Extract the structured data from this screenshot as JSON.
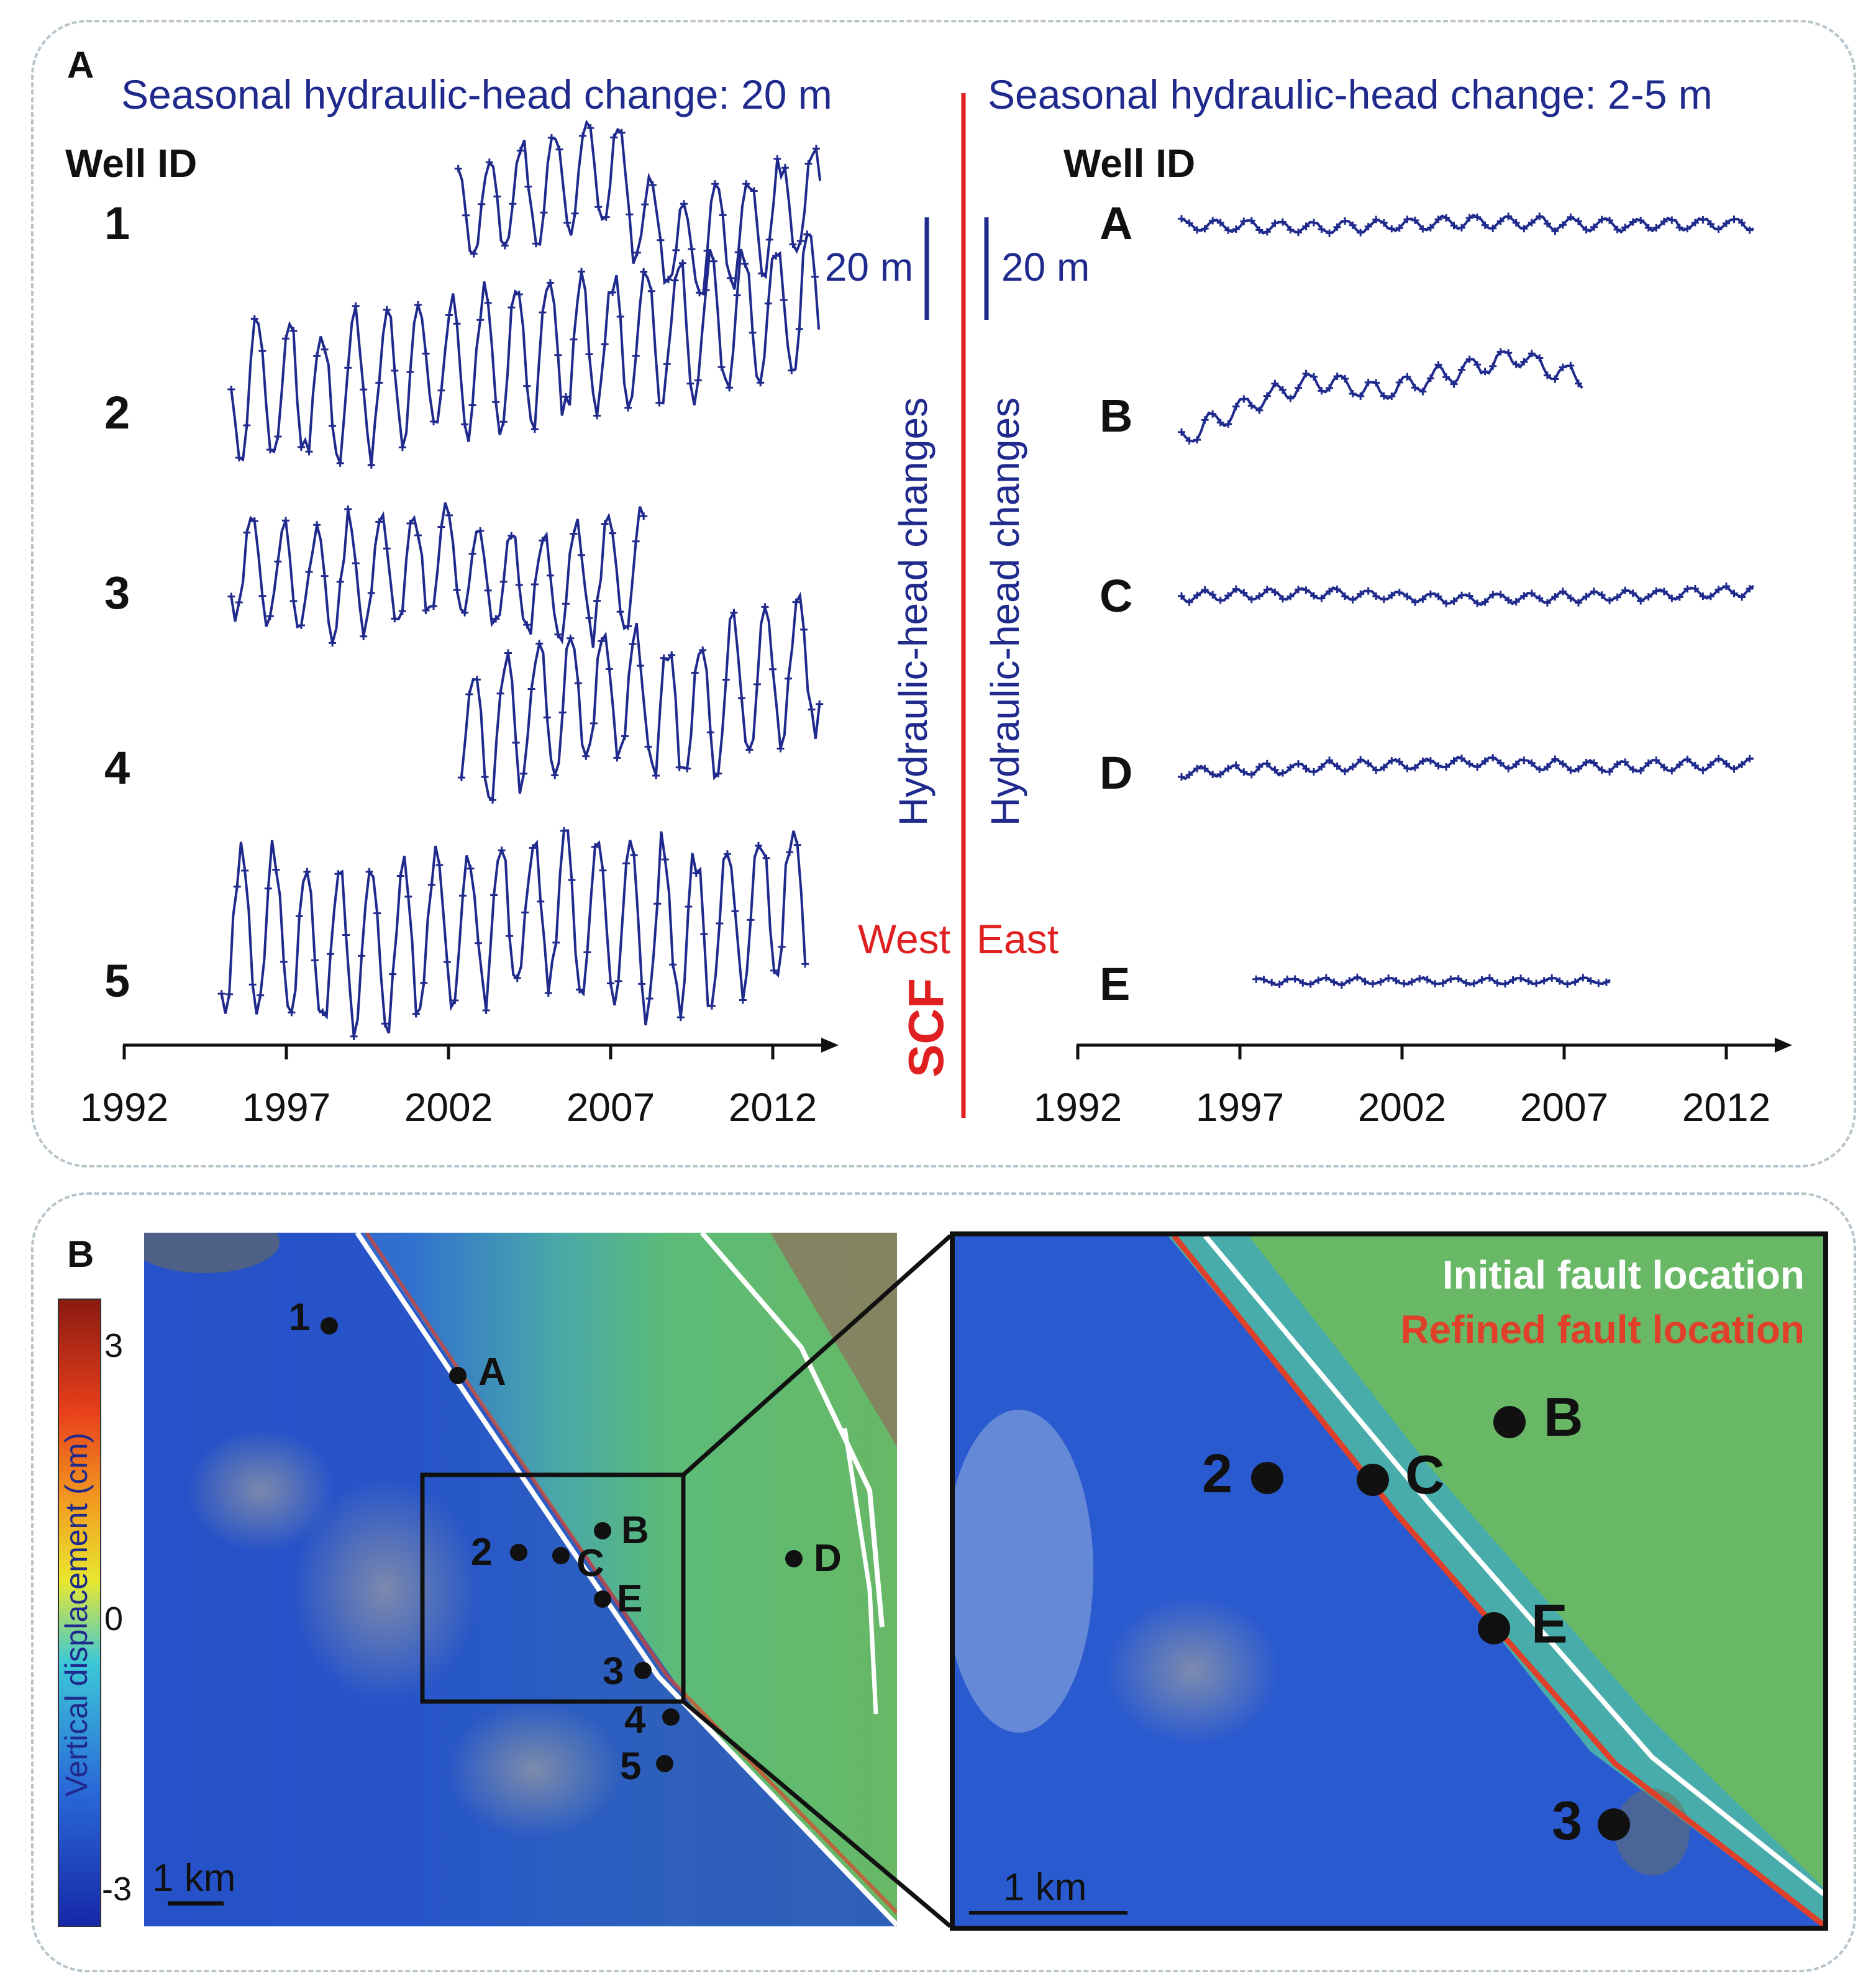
{
  "panel_a": {
    "letter": "A",
    "west_title": "Seasonal hydraulic-head change: 20 m",
    "east_title": "Seasonal hydraulic-head change: 2-5 m",
    "well_id_label": "Well ID",
    "scale_label": "20 m",
    "ylabel": "Hydraulic-head changes",
    "fault": {
      "name": "SCF",
      "west": "West",
      "east": "East"
    },
    "colors": {
      "series": "#1f2a8c",
      "fault": "#e02020",
      "text": "#1f2a8c"
    },
    "x_ticks": [
      "1992",
      "1997",
      "2002",
      "2007",
      "2012"
    ]
  },
  "chart_data": [
    {
      "type": "line",
      "side": "west",
      "xlim": [
        1992,
        2014
      ],
      "x_ticks": [
        1992,
        1997,
        2002,
        2007,
        2012
      ],
      "series": [
        {
          "name": "1",
          "x_start": 2002.3,
          "x_end": 2013.5,
          "amplitude": 10,
          "trend": [
            0,
            4,
            8,
            -6,
            -2,
            4
          ]
        },
        {
          "name": "2",
          "x_start": 1995.3,
          "x_end": 2013.5,
          "amplitude": 14,
          "trend": [
            0,
            2,
            6,
            9,
            12,
            16
          ]
        },
        {
          "name": "3",
          "x_start": 1995.3,
          "x_end": 2008.1,
          "amplitude": 11,
          "trend": [
            0,
            -2,
            2,
            -3,
            1
          ]
        },
        {
          "name": "4",
          "x_start": 2002.4,
          "x_end": 2013.5,
          "amplitude": 14,
          "trend": [
            0,
            6,
            8,
            4,
            10,
            14
          ]
        },
        {
          "name": "5",
          "x_start": 1995.0,
          "x_end": 2013.0,
          "amplitude": 16,
          "trend": [
            0,
            -4,
            0,
            2,
            -2,
            6
          ]
        }
      ]
    },
    {
      "type": "line",
      "side": "east",
      "xlim": [
        1992,
        2014
      ],
      "x_ticks": [
        1992,
        1997,
        2002,
        2007,
        2012
      ],
      "series": [
        {
          "name": "A",
          "x_start": 1995.2,
          "x_end": 2012.9,
          "amplitude": 1.2,
          "trend": [
            0,
            -0.5,
            0.5,
            0,
            0.3
          ]
        },
        {
          "name": "B",
          "x_start": 1995.2,
          "x_end": 2007.6,
          "amplitude": 2.0,
          "trend": [
            -6,
            0,
            4,
            2,
            5,
            8,
            4
          ]
        },
        {
          "name": "C",
          "x_start": 1995.2,
          "x_end": 2012.9,
          "amplitude": 1.0,
          "trend": [
            0,
            0.5,
            -0.5,
            0,
            1
          ]
        },
        {
          "name": "D",
          "x_start": 1995.2,
          "x_end": 2012.9,
          "amplitude": 1.0,
          "trend": [
            -1,
            0,
            0.8,
            0,
            0.6
          ]
        },
        {
          "name": "E",
          "x_start": 1997.5,
          "x_end": 2008.5,
          "amplitude": 0.6,
          "trend": [
            0,
            0,
            0
          ]
        }
      ]
    }
  ],
  "panel_b": {
    "letter": "B",
    "colorbar": {
      "label": "Vertical displacement (cm)",
      "ticks": [
        "3",
        "0",
        "-3"
      ],
      "colors": [
        "#8b1a10",
        "#e8401c",
        "#f2a020",
        "#e8e830",
        "#3cc8d8",
        "#2a6ad8",
        "#1628a8"
      ]
    },
    "scale_label": "1 km",
    "map_wells": [
      "1",
      "A",
      "2",
      "C",
      "B",
      "E",
      "3",
      "4",
      "5",
      "D"
    ],
    "inset_wells": [
      "2",
      "C",
      "B",
      "E",
      "3"
    ],
    "legend": {
      "initial": "Initial fault location",
      "refined": "Refined fault location",
      "initial_color": "#ffffff",
      "refined_color": "#e0402a"
    }
  }
}
